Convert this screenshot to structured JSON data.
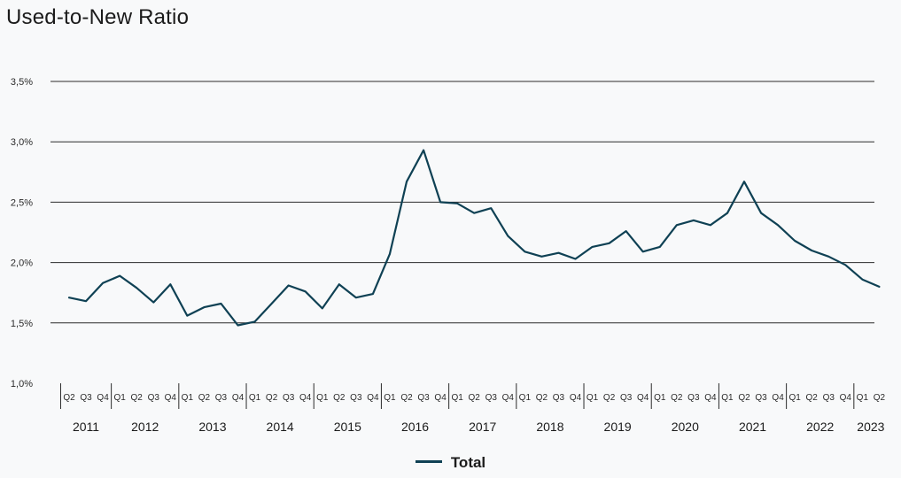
{
  "chart_data": {
    "type": "line",
    "title": "Used-to-New Ratio",
    "ylim": [
      1.0,
      3.5
    ],
    "yticks": [
      "1,0%",
      "1,5%",
      "2,0%",
      "2,5%",
      "3,0%",
      "3,5%"
    ],
    "grid": true,
    "legend_position": "bottom-center",
    "quarter_labels": [
      "Q2",
      "Q3",
      "Q4",
      "Q1",
      "Q2",
      "Q3",
      "Q4",
      "Q1",
      "Q2",
      "Q3",
      "Q4",
      "Q1",
      "Q2",
      "Q3",
      "Q4",
      "Q1",
      "Q2",
      "Q3",
      "Q4",
      "Q1",
      "Q2",
      "Q3",
      "Q4",
      "Q1",
      "Q2",
      "Q3",
      "Q4",
      "Q1",
      "Q2",
      "Q3",
      "Q4",
      "Q1",
      "Q2",
      "Q3",
      "Q4",
      "Q1",
      "Q2",
      "Q3",
      "Q4",
      "Q1",
      "Q2",
      "Q3",
      "Q4",
      "Q1",
      "Q2",
      "Q3",
      "Q4",
      "Q1",
      "Q2"
    ],
    "years": [
      {
        "label": "2011",
        "quarters": 3
      },
      {
        "label": "2012",
        "quarters": 4
      },
      {
        "label": "2013",
        "quarters": 4
      },
      {
        "label": "2014",
        "quarters": 4
      },
      {
        "label": "2015",
        "quarters": 4
      },
      {
        "label": "2016",
        "quarters": 4
      },
      {
        "label": "2017",
        "quarters": 4
      },
      {
        "label": "2018",
        "quarters": 4
      },
      {
        "label": "2019",
        "quarters": 4
      },
      {
        "label": "2020",
        "quarters": 4
      },
      {
        "label": "2021",
        "quarters": 4
      },
      {
        "label": "2022",
        "quarters": 4
      },
      {
        "label": "2023",
        "quarters": 2
      }
    ],
    "series": [
      {
        "name": "Total",
        "color": "#0f4154",
        "values": [
          1.71,
          1.68,
          1.83,
          1.89,
          1.79,
          1.67,
          1.82,
          1.56,
          1.63,
          1.66,
          1.48,
          1.51,
          1.66,
          1.81,
          1.76,
          1.62,
          1.82,
          1.71,
          1.74,
          2.07,
          2.67,
          2.93,
          2.5,
          2.49,
          2.41,
          2.45,
          2.22,
          2.09,
          2.05,
          2.08,
          2.03,
          2.13,
          2.16,
          2.26,
          2.09,
          2.13,
          2.31,
          2.35,
          2.31,
          2.41,
          2.67,
          2.41,
          2.31,
          2.18,
          2.1,
          2.05,
          1.98,
          1.86,
          1.8
        ]
      }
    ]
  }
}
